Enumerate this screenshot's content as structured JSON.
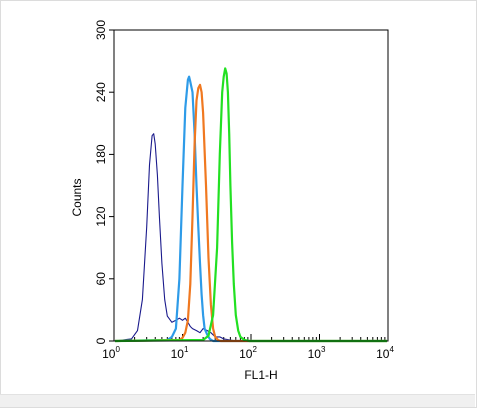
{
  "chart_data": {
    "type": "line",
    "title": "",
    "xlabel": "FL1-H",
    "ylabel": "Counts",
    "x_scale": "log",
    "xlim": [
      1,
      10000
    ],
    "ylim": [
      0,
      300
    ],
    "x_ticks": [
      {
        "value": 1,
        "base": "10",
        "exp": "0"
      },
      {
        "value": 10,
        "base": "10",
        "exp": "1"
      },
      {
        "value": 100,
        "base": "10",
        "exp": "2"
      },
      {
        "value": 1000,
        "base": "10",
        "exp": "3"
      },
      {
        "value": 10000,
        "base": "10",
        "exp": "4"
      }
    ],
    "y_ticks": [
      "0",
      "60",
      "120",
      "180",
      "240",
      "300"
    ],
    "grid": false,
    "legend": "none",
    "series": [
      {
        "color": "#1a1a8c",
        "x": [
          1.8,
          2.2,
          2.6,
          3.0,
          3.3,
          3.6,
          3.8,
          4.0,
          4.3,
          4.6,
          5.0,
          5.5,
          6.0,
          7.0,
          8.0,
          9.0,
          10.0,
          11.0,
          12.0,
          13.0,
          14.0,
          16.0,
          18.0,
          20.0,
          23.0,
          26.0,
          30.0,
          35.0,
          40.0,
          50.0,
          60.0
        ],
        "y": [
          2,
          10,
          40,
          110,
          170,
          198,
          200,
          190,
          160,
          120,
          75,
          40,
          24,
          18,
          20,
          22,
          20,
          22,
          18,
          14,
          12,
          10,
          8,
          12,
          10,
          8,
          4,
          4,
          2,
          1,
          0
        ]
      },
      {
        "color": "#2e9be8",
        "x": [
          6.0,
          7.0,
          8.0,
          9.0,
          10.0,
          11.0,
          12.0,
          12.5,
          13.0,
          14.0,
          15.0,
          16.0,
          17.0,
          18.0,
          19.0,
          20.0,
          21.0,
          23.0,
          25.0,
          28.0
        ],
        "y": [
          1,
          4,
          12,
          60,
          150,
          225,
          252,
          255,
          250,
          240,
          200,
          150,
          110,
          75,
          45,
          25,
          12,
          6,
          2,
          0
        ]
      },
      {
        "color": "#f07820",
        "x": [
          9.0,
          10.0,
          11.0,
          12.0,
          13.0,
          14.0,
          15.0,
          16.0,
          17.0,
          18.0,
          19.0,
          20.0,
          22.0,
          24.0,
          26.0,
          28.0,
          30.0,
          33.0,
          36.0
        ],
        "y": [
          1,
          3,
          8,
          20,
          55,
          120,
          190,
          232,
          244,
          247,
          240,
          220,
          150,
          80,
          35,
          12,
          4,
          1,
          0
        ]
      },
      {
        "color": "#22e022",
        "x": [
          20.0,
          24.0,
          28.0,
          32.0,
          35.0,
          38.0,
          40.0,
          42.0,
          44.0,
          46.0,
          48.0,
          50.0,
          53.0,
          56.0,
          60.0,
          65.0,
          70.0,
          80.0,
          95.0
        ],
        "y": [
          1,
          5,
          25,
          90,
          180,
          240,
          255,
          263,
          258,
          240,
          200,
          150,
          95,
          55,
          25,
          10,
          4,
          1,
          0
        ]
      }
    ]
  }
}
